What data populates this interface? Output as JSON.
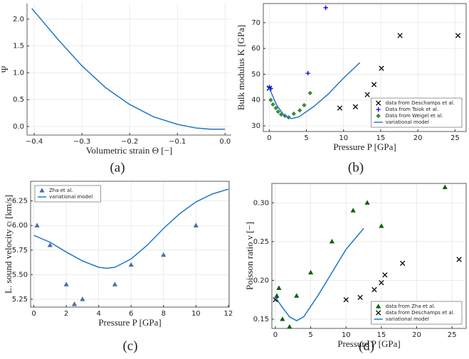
{
  "chart_data": [
    {
      "type": "line",
      "caption": "(a)",
      "x_label": "Volumetric strain Θ [−]",
      "y_label": "Ψ",
      "box": false,
      "grid": true,
      "xlim": [
        -0.415,
        0.013
      ],
      "ylim": [
        -0.16,
        2.29
      ],
      "xticks": [
        {
          "value": -0.4,
          "label": "−0.4"
        },
        {
          "value": -0.3,
          "label": "−0.3"
        },
        {
          "value": -0.2,
          "label": "−0.2"
        },
        {
          "value": -0.1,
          "label": "−0.1"
        },
        {
          "value": 0,
          "label": "0.0"
        }
      ],
      "yticks": [
        {
          "value": 0,
          "label": "0.0"
        },
        {
          "value": 0.5,
          "label": "0.5"
        },
        {
          "value": 1,
          "label": "1.0"
        },
        {
          "value": 1.5,
          "label": "1.5"
        },
        {
          "value": 2,
          "label": "2.0"
        }
      ],
      "series": [
        {
          "color": "#1f77c8",
          "style": "line",
          "x": [
            -0.405,
            -0.35,
            -0.3,
            -0.25,
            -0.2,
            -0.15,
            -0.1,
            -0.06,
            -0.03,
            0
          ],
          "values": [
            2.2,
            1.62,
            1.13,
            0.72,
            0.41,
            0.18,
            0.04,
            -0.03,
            -0.05,
            -0.05
          ]
        }
      ]
    },
    {
      "type": "scatter",
      "caption": "(b)",
      "x_label": "Pressure P [GPa]",
      "y_label": "Bulk modulus K [GPa]",
      "box": true,
      "grid": true,
      "legend": "lower right",
      "xlim": [
        -0.8,
        26.5
      ],
      "ylim": [
        27.8,
        77.4
      ],
      "xticks": [
        0,
        5,
        10,
        15,
        20,
        25
      ],
      "yticks": [
        30,
        40,
        50,
        60,
        70
      ],
      "series": [
        {
          "name": "data from Deschamps et al.",
          "color": "#000000",
          "style": "x",
          "x": [
            0,
            9.5,
            11.6,
            13.2,
            14.1,
            15.1,
            17.6,
            25.4
          ],
          "values": [
            44.6,
            36.9,
            37.4,
            42.1,
            46,
            52.3,
            65,
            65
          ]
        },
        {
          "name": "Data from Tsiok et al.",
          "color": "#0000ee",
          "style": "plus",
          "x": [
            0,
            0.2,
            5.2,
            7.6
          ],
          "values": [
            45,
            44.5,
            50.4,
            75.8
          ]
        },
        {
          "name": "Data from Weigel et al.",
          "color": "#3d8a3d",
          "style": "diamond",
          "x": [
            0.2,
            0.5,
            0.9,
            1.2,
            1.6,
            2.1,
            2.6,
            3.3,
            4.1,
            4.7,
            5.5
          ],
          "values": [
            40,
            38.3,
            36.9,
            35.5,
            34.4,
            33.9,
            33.3,
            34.7,
            36,
            38,
            42.7
          ]
        },
        {
          "name": "variational model",
          "color": "#1f77c8",
          "style": "line",
          "x": [
            0,
            1,
            2,
            3,
            4,
            6,
            8,
            10,
            12.2
          ],
          "values": [
            44.6,
            38,
            34,
            32.8,
            33.5,
            37.5,
            42.5,
            48.5,
            54.5
          ]
        }
      ]
    },
    {
      "type": "scatter",
      "caption": "(c)",
      "x_label": "Pressure P [GPa]",
      "y_label": "L. sound velocity cₗ [km/s]",
      "box": true,
      "grid": true,
      "legend": "upper left",
      "xlim": [
        -0.2,
        12.05
      ],
      "ylim": [
        5.17,
        6.45
      ],
      "xticks": [
        0,
        2,
        4,
        6,
        8,
        10,
        12
      ],
      "yticks": [
        5.25,
        {
          "value": 5.5,
          "label": "5.50"
        },
        5.75,
        {
          "value": 6,
          "label": "6.00"
        },
        6.25
      ],
      "series": [
        {
          "name": "Zha et al.",
          "color": "#4a6fa5",
          "style": "triangle",
          "x": [
            0.2,
            1,
            2,
            2.5,
            3,
            5,
            6,
            8,
            10
          ],
          "values": [
            6.0,
            5.8,
            5.4,
            5.2,
            5.25,
            5.4,
            5.6,
            5.7,
            6.0
          ]
        },
        {
          "name": "variational model",
          "color": "#1f77c8",
          "style": "line",
          "x": [
            0,
            1,
            2,
            3,
            4,
            4.5,
            5,
            6,
            7,
            8,
            9,
            10,
            11,
            12
          ],
          "values": [
            5.9,
            5.83,
            5.73,
            5.64,
            5.575,
            5.565,
            5.575,
            5.66,
            5.8,
            5.97,
            6.12,
            6.24,
            6.32,
            6.37
          ]
        }
      ]
    },
    {
      "type": "scatter",
      "caption": "(d)",
      "x_label": "Pressure P [GPa]",
      "y_label": "Poisson ratio ν [−]",
      "box": true,
      "grid": true,
      "legend": "lower right",
      "xlim": [
        -0.5,
        27
      ],
      "ylim": [
        0.138,
        0.325
      ],
      "xticks": [
        0,
        5,
        10,
        15,
        20,
        25
      ],
      "yticks": [
        0.15,
        {
          "value": 0.2,
          "label": "0.20"
        },
        0.25,
        {
          "value": 0.3,
          "label": "0.30"
        }
      ],
      "series": [
        {
          "name": "data from Zha et al.",
          "color": "#006400",
          "style": "triangle",
          "x": [
            0.2,
            0.5,
            1,
            2,
            3,
            5,
            8,
            11,
            13,
            15,
            24
          ],
          "values": [
            0.18,
            0.19,
            0.15,
            0.14,
            0.18,
            0.21,
            0.25,
            0.29,
            0.3,
            0.27,
            0.32
          ]
        },
        {
          "name": "data from Deschamps et al.",
          "color": "#000000",
          "style": "x",
          "x": [
            0,
            10,
            12,
            14,
            15,
            15.5,
            18,
            26
          ],
          "values": [
            0.175,
            0.175,
            0.178,
            0.188,
            0.197,
            0.207,
            0.222,
            0.227
          ]
        },
        {
          "name": "variational model",
          "color": "#1f77c8",
          "style": "line",
          "x": [
            0,
            1,
            2,
            3,
            4,
            6,
            8,
            10,
            12.5
          ],
          "values": [
            0.178,
            0.165,
            0.153,
            0.148,
            0.153,
            0.18,
            0.21,
            0.24,
            0.267
          ]
        }
      ]
    }
  ]
}
